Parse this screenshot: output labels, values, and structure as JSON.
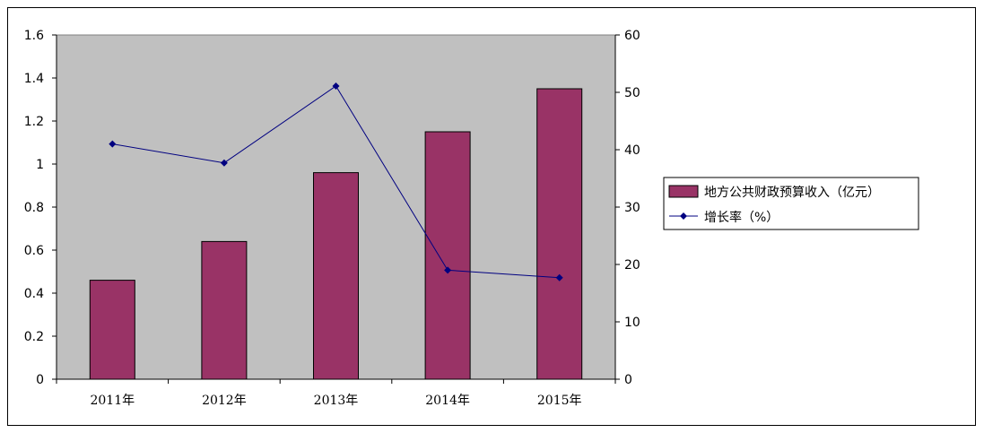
{
  "chart_data": {
    "type": "bar",
    "categories": [
      "2011年",
      "2012年",
      "2013年",
      "2014年",
      "2015年"
    ],
    "series": [
      {
        "name": "地方公共财政预算收入（亿元）",
        "type": "bar",
        "axis": "left",
        "color": "#993366",
        "values": [
          0.46,
          0.64,
          0.96,
          1.15,
          1.35
        ]
      },
      {
        "name": "增长率（%）",
        "type": "line",
        "axis": "right",
        "color": "#000080",
        "marker": "diamond",
        "values": [
          41.0,
          37.7,
          51.1,
          19.0,
          17.7
        ]
      }
    ],
    "y_left": {
      "min": 0,
      "max": 1.6,
      "ticks": [
        "0",
        "0.2",
        "0.4",
        "0.6",
        "0.8",
        "1",
        "1.2",
        "1.4",
        "1.6"
      ]
    },
    "y_right": {
      "min": 0,
      "max": 60,
      "ticks": [
        "0",
        "10",
        "20",
        "30",
        "40",
        "50",
        "60"
      ]
    },
    "plot_background": "#c0c0c0",
    "grid": false,
    "legend_position": "right"
  }
}
